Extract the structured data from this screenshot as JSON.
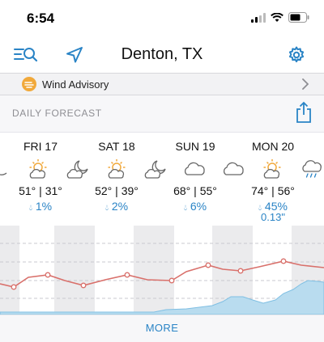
{
  "status_bar": {
    "time": "6:54"
  },
  "nav": {
    "title": "Denton, TX"
  },
  "advisory": {
    "label": "Wind Advisory"
  },
  "section": {
    "title": "DAILY FORECAST"
  },
  "days": [
    {
      "name": "FRI 17",
      "temps": "51° | 31°",
      "precip": "1%",
      "amount": "",
      "icon": "sun-cloud-icon"
    },
    {
      "name": "SAT 18",
      "temps": "52° | 39°",
      "precip": "2%",
      "amount": "",
      "icon": "sun-cloud-icon"
    },
    {
      "name": "SUN 19",
      "temps": "68° | 55°",
      "precip": "6%",
      "amount": "",
      "icon": "cloud-icon"
    },
    {
      "name": "MON 20",
      "temps": "74° | 56°",
      "precip": "45%",
      "amount": "0.13\"",
      "icon": "sun-cloud-icon"
    }
  ],
  "colors": {
    "accent": "#2a84c6",
    "temp_line": "#d9706b",
    "precip_fill": "#b9dcef",
    "advisory": "#f1a93b"
  },
  "footer": {
    "more_label": "MORE"
  }
}
